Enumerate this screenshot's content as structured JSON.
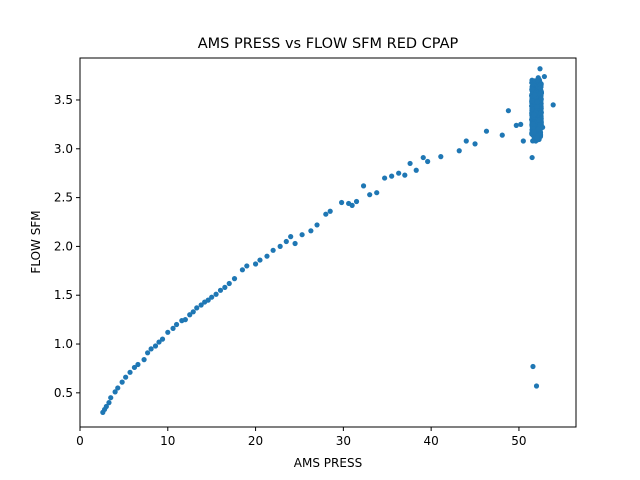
{
  "chart_data": {
    "type": "scatter",
    "title": "AMS PRESS vs FLOW SFM RED CPAP",
    "xlabel": "AMS PRESS",
    "ylabel": "FLOW SFM",
    "xlim": [
      0,
      56.5
    ],
    "ylim": [
      0.15,
      3.93
    ],
    "xticks": [
      0,
      10,
      20,
      30,
      40,
      50
    ],
    "yticks": [
      0.5,
      1.0,
      1.5,
      2.0,
      2.5,
      3.0,
      3.5
    ],
    "ytick_labels": [
      "0.5",
      "1.0",
      "1.5",
      "2.0",
      "2.5",
      "3.0",
      "3.5"
    ],
    "grid": false,
    "marker_color": "#1f77b4",
    "series": [
      {
        "x": [
          2.6,
          2.8,
          3.0,
          3.3,
          3.5,
          4.0,
          4.3,
          4.8,
          5.2,
          5.7,
          6.2,
          6.6,
          7.3,
          7.7,
          8.1,
          8.6,
          9.0,
          9.4,
          10.0,
          10.6,
          11.0,
          11.6,
          12.0,
          12.5,
          12.9,
          13.3,
          13.8,
          14.2,
          14.6,
          15.0,
          15.5,
          16.0,
          16.5,
          17.0,
          17.6,
          18.5,
          19.0,
          20.0,
          20.5,
          21.3,
          22.0,
          22.8,
          23.5,
          24.0,
          24.5,
          25.3,
          26.3,
          27.0,
          28.0,
          28.5,
          29.8,
          30.6,
          31.0,
          31.5,
          32.3,
          33.0,
          33.8,
          34.7,
          35.5,
          36.3,
          37.0,
          37.6,
          38.3,
          39.1,
          39.6,
          41.1,
          43.2,
          44.0,
          45.0,
          46.3,
          48.1,
          48.8,
          49.7,
          50.5,
          51.6,
          52.0
        ],
        "y": [
          0.3,
          0.33,
          0.36,
          0.4,
          0.45,
          0.51,
          0.55,
          0.61,
          0.66,
          0.71,
          0.76,
          0.79,
          0.84,
          0.91,
          0.95,
          0.98,
          1.02,
          1.05,
          1.12,
          1.16,
          1.2,
          1.24,
          1.25,
          1.3,
          1.33,
          1.37,
          1.4,
          1.43,
          1.45,
          1.48,
          1.51,
          1.55,
          1.58,
          1.62,
          1.67,
          1.76,
          1.8,
          1.82,
          1.86,
          1.9,
          1.96,
          2.0,
          2.05,
          2.1,
          2.03,
          2.12,
          2.16,
          2.22,
          2.33,
          2.36,
          2.45,
          2.44,
          2.42,
          2.46,
          2.62,
          2.53,
          2.55,
          2.7,
          2.72,
          2.75,
          2.73,
          2.85,
          2.78,
          2.91,
          2.87,
          2.92,
          2.98,
          3.08,
          3.05,
          3.18,
          3.14,
          3.39,
          3.24,
          3.08,
          0.77,
          0.57
        ]
      }
    ],
    "cluster": {
      "x_center": 52.0,
      "x_spread": 0.55,
      "y_min": 2.9,
      "y_max": 3.82,
      "count": 700,
      "extra_points": [
        {
          "x": 53.9,
          "y": 3.45
        },
        {
          "x": 52.4,
          "y": 3.82
        },
        {
          "x": 52.9,
          "y": 3.74
        },
        {
          "x": 51.5,
          "y": 2.91
        },
        {
          "x": 52.7,
          "y": 3.22
        },
        {
          "x": 50.2,
          "y": 3.25
        }
      ]
    }
  }
}
